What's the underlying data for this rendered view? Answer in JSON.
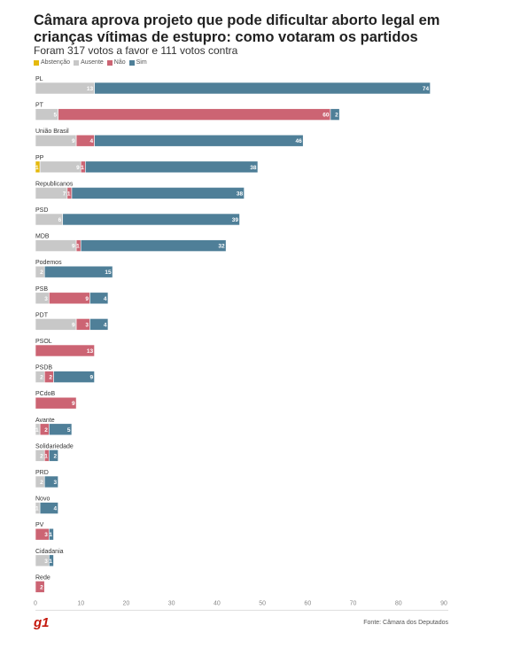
{
  "title": "Câmara aprova projeto que pode dificultar aborto legal em crianças vítimas de estupro: como votaram os partidos",
  "subtitle": "Foram 317 votos a favor e 111 votos contra",
  "source": "Fonte: Câmara dos Deputados",
  "logo": "g1",
  "colors": {
    "Abstenção": "#e5b90d",
    "Ausente": "#c8c8c8",
    "Não": "#cc6473",
    "Sim": "#4f7f98"
  },
  "chart_data": {
    "type": "bar",
    "orientation": "horizontal",
    "stacked": true,
    "xlim": [
      0,
      90
    ],
    "x_ticks": [
      0,
      10,
      20,
      30,
      40,
      50,
      60,
      70,
      80,
      90
    ],
    "legend_position": "top-left",
    "series": [
      {
        "name": "Abstenção",
        "values": [
          0,
          0,
          0,
          1,
          0,
          0,
          0,
          0,
          0,
          0,
          0,
          0,
          0,
          0,
          0,
          0,
          0,
          0,
          0,
          0
        ]
      },
      {
        "name": "Ausente",
        "values": [
          13,
          5,
          9,
          9,
          7,
          6,
          9,
          2,
          3,
          9,
          0,
          2,
          0,
          1,
          2,
          2,
          1,
          0,
          3,
          0
        ]
      },
      {
        "name": "Não",
        "values": [
          0,
          60,
          4,
          1,
          1,
          0,
          1,
          0,
          9,
          3,
          13,
          2,
          9,
          2,
          1,
          0,
          0,
          3,
          0,
          2
        ]
      },
      {
        "name": "Sim",
        "values": [
          74,
          2,
          46,
          38,
          38,
          39,
          32,
          15,
          4,
          4,
          0,
          9,
          0,
          5,
          2,
          3,
          4,
          1,
          1,
          0
        ]
      }
    ],
    "categories": [
      "PL",
      "PT",
      "União Brasil",
      "PP",
      "Republicanos",
      "PSD",
      "MDB",
      "Podemos",
      "PSB",
      "PDT",
      "PSOL",
      "PSDB",
      "PCdoB",
      "Avante",
      "Solidariedade",
      "PRD",
      "Novo",
      "PV",
      "Cidadania",
      "Rede"
    ]
  }
}
